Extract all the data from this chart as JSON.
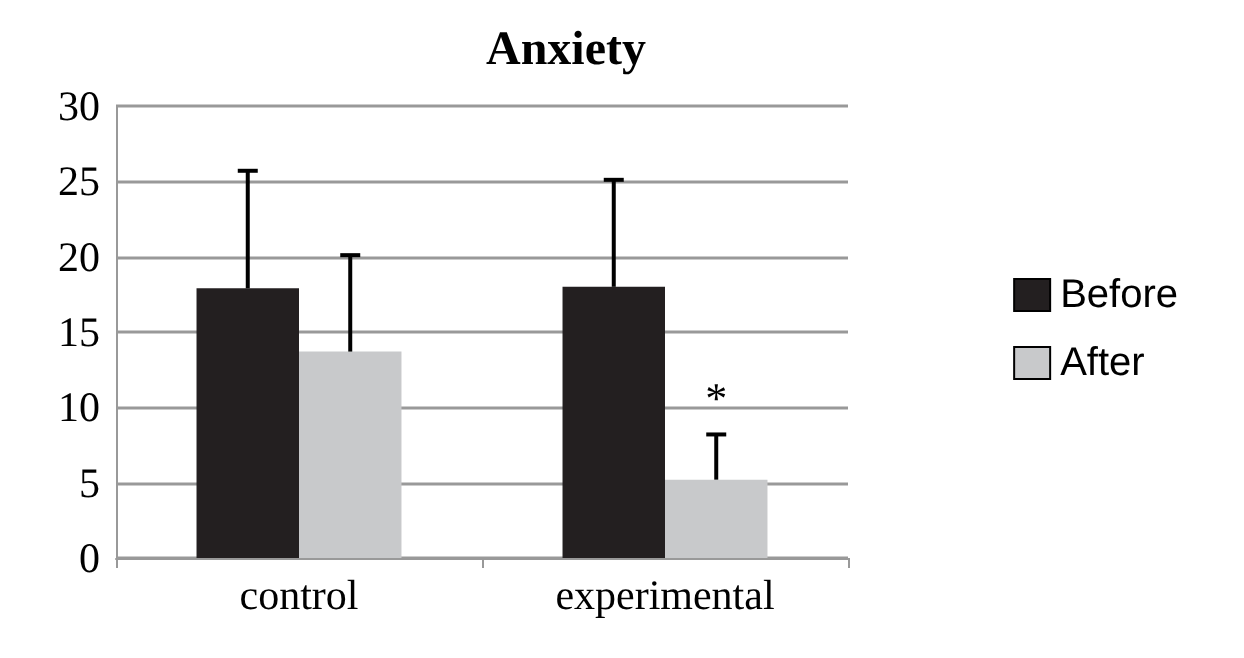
{
  "chart_data": {
    "type": "bar",
    "title": "Anxiety",
    "categories": [
      "control",
      "experimental"
    ],
    "series": [
      {
        "name": "Before",
        "color": "#231f20",
        "values": [
          17.9,
          18.0
        ],
        "errors": [
          [
            17.9,
            25.7
          ],
          [
            18.0,
            25.1
          ]
        ]
      },
      {
        "name": "After",
        "color": "#c8c9cb",
        "values": [
          13.7,
          5.2
        ],
        "errors": [
          [
            13.7,
            20.1
          ],
          [
            5.2,
            8.2
          ]
        ]
      }
    ],
    "annotations": [
      {
        "text": "*",
        "x": "experimental",
        "y": 10.6
      }
    ],
    "ylim": [
      0,
      30
    ],
    "yticks": [
      0,
      5,
      10,
      15,
      20,
      25,
      30
    ],
    "grid": "y",
    "legend": "right"
  }
}
